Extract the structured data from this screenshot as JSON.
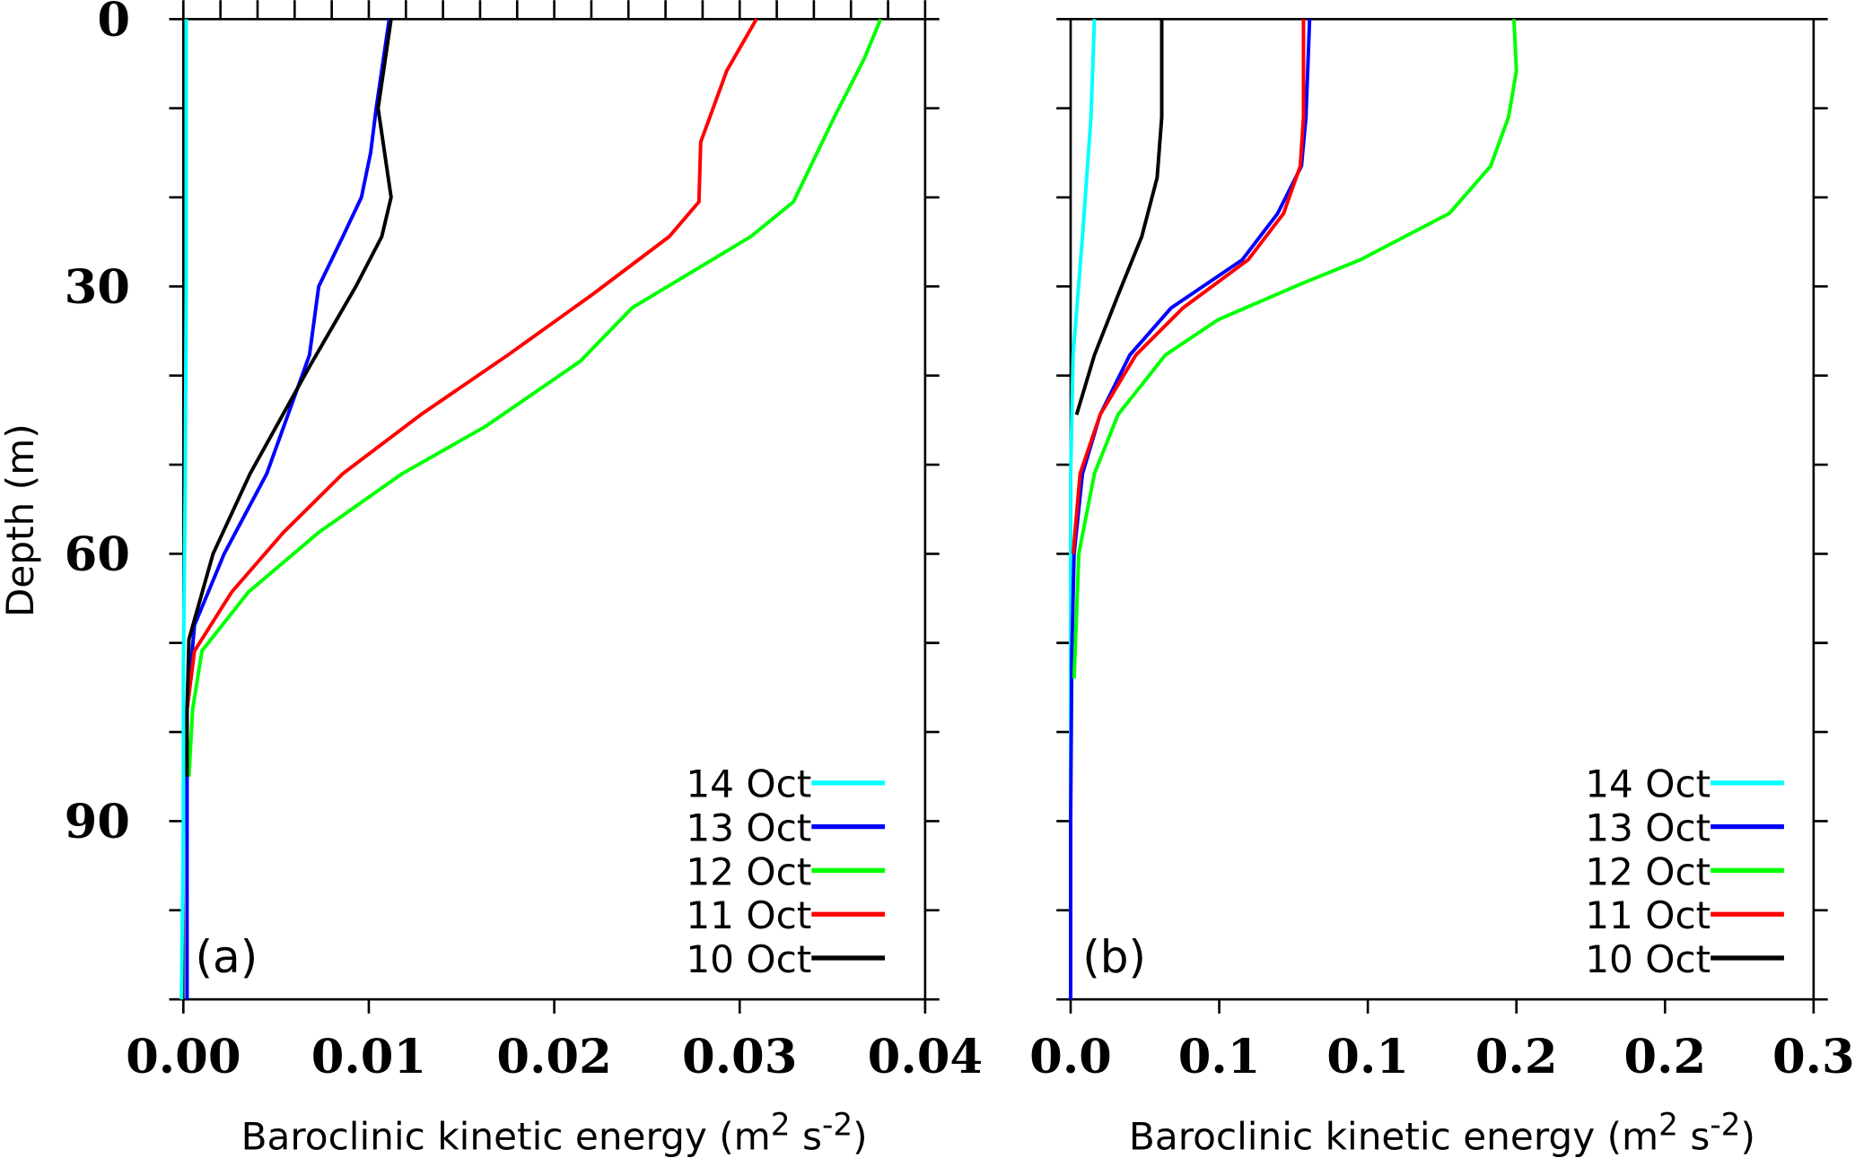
{
  "chart_data": [
    {
      "type": "line",
      "panel_label": "(a)",
      "xlabel": "Baroclinic kinetic energy (m",
      "xlabel_sup1": "2",
      "xlabel_mid": " s",
      "xlabel_sup2": "-2",
      "xlabel_end": ")",
      "ylabel": "Depth (m)",
      "xlim": [
        0,
        0.04
      ],
      "ylim": [
        0,
        110
      ],
      "y_inverted": true,
      "xticks": [
        0,
        0.01,
        0.02,
        0.03,
        0.04
      ],
      "xtick_labels": [
        "0.00",
        "0.01",
        "0.02",
        "0.03",
        "0.04"
      ],
      "yticks": [
        0,
        30,
        60,
        90
      ],
      "ytick_labels": [
        "0",
        "30",
        "60",
        "90"
      ],
      "legend_position": "bottom-right",
      "series": [
        {
          "name": "14 Oct",
          "color": "#00ffff",
          "points": [
            [
              0.00015,
              0
            ],
            [
              0.00015,
              30
            ],
            [
              0.0001,
              52
            ],
            [
              0.0,
              73
            ],
            [
              0.0,
              90
            ],
            [
              -0.0001,
              110
            ]
          ]
        },
        {
          "name": "13 Oct",
          "color": "#0000ff",
          "points": [
            [
              0.0111,
              0
            ],
            [
              0.0104,
              10
            ],
            [
              0.0101,
              15
            ],
            [
              0.0096,
              20
            ],
            [
              0.0086,
              24.4
            ],
            [
              0.0073,
              30
            ],
            [
              0.0068,
              37.7
            ],
            [
              0.0045,
              51
            ],
            [
              0.0022,
              60
            ],
            [
              0.0006,
              68
            ],
            [
              0.0002,
              77.5
            ],
            [
              0.0002,
              95
            ],
            [
              0.0002,
              110
            ]
          ]
        },
        {
          "name": "12 Oct",
          "color": "#00ff00",
          "points": [
            [
              0.0376,
              0
            ],
            [
              0.0367,
              4.5
            ],
            [
              0.0351,
              11
            ],
            [
              0.0329,
              20.5
            ],
            [
              0.0306,
              24.4
            ],
            [
              0.0242,
              32.4
            ],
            [
              0.0214,
              38.4
            ],
            [
              0.0163,
              45.7
            ],
            [
              0.0118,
              51
            ],
            [
              0.0073,
              57.6
            ],
            [
              0.0035,
              64.3
            ],
            [
              0.001,
              70.9
            ],
            [
              0.0005,
              77.5
            ],
            [
              0.0003,
              85
            ]
          ]
        },
        {
          "name": "11 Oct",
          "color": "#ff0000",
          "points": [
            [
              0.0309,
              0
            ],
            [
              0.0293,
              5.8
            ],
            [
              0.0279,
              13.8
            ],
            [
              0.0278,
              20.5
            ],
            [
              0.0262,
              24.4
            ],
            [
              0.022,
              31
            ],
            [
              0.0175,
              37.7
            ],
            [
              0.0128,
              44.4
            ],
            [
              0.0086,
              51
            ],
            [
              0.0054,
              57.6
            ],
            [
              0.0026,
              64.3
            ],
            [
              0.0006,
              70.9
            ],
            [
              0.0002,
              77.5
            ]
          ]
        },
        {
          "name": "10 Oct",
          "color": "#000000",
          "points": [
            [
              0.0112,
              0
            ],
            [
              0.0105,
              10
            ],
            [
              0.0112,
              20
            ],
            [
              0.0107,
              24.4
            ],
            [
              0.0093,
              30
            ],
            [
              0.0068,
              39
            ],
            [
              0.0036,
              51
            ],
            [
              0.0016,
              60
            ],
            [
              0.0003,
              69.6
            ],
            [
              0.0002,
              77.5
            ],
            [
              0.0002,
              85
            ]
          ]
        }
      ]
    },
    {
      "type": "line",
      "panel_label": "(b)",
      "xlabel": "Baroclinic kinetic energy (m",
      "xlabel_sup1": "2",
      "xlabel_mid": " s",
      "xlabel_sup2": "-2",
      "xlabel_end": ")",
      "xlim": [
        0,
        0.3
      ],
      "ylim": [
        0,
        110
      ],
      "y_inverted": true,
      "xticks": [
        0,
        0.06,
        0.12,
        0.18,
        0.24,
        0.3
      ],
      "xtick_labels": [
        "0.0",
        "0.1",
        "0.1",
        "0.2",
        "0.2",
        "0.3"
      ],
      "legend_position": "bottom-right",
      "series": [
        {
          "name": "14 Oct",
          "color": "#00ffff",
          "points": [
            [
              0.0096,
              0
            ],
            [
              0.0082,
              11
            ],
            [
              0.0048,
              24.4
            ],
            [
              0.001,
              37.7
            ],
            [
              0.0,
              51
            ],
            [
              0.0,
              80
            ],
            [
              0.0,
              110
            ]
          ]
        },
        {
          "name": "13 Oct",
          "color": "#0000ff",
          "points": [
            [
              0.0965,
              0
            ],
            [
              0.095,
              11
            ],
            [
              0.0932,
              16.5
            ],
            [
              0.0836,
              21.8
            ],
            [
              0.0693,
              27
            ],
            [
              0.0406,
              32.4
            ],
            [
              0.0239,
              37.7
            ],
            [
              0.0119,
              44.4
            ],
            [
              0.0048,
              51
            ],
            [
              0.0014,
              60
            ],
            [
              0.0005,
              71
            ],
            [
              0.0,
              90
            ],
            [
              0.0,
              110
            ]
          ]
        },
        {
          "name": "12 Oct",
          "color": "#00ff00",
          "points": [
            [
              0.179,
              0
            ],
            [
              0.18,
              5.8
            ],
            [
              0.1768,
              11
            ],
            [
              0.1696,
              16.5
            ],
            [
              0.1529,
              21.8
            ],
            [
              0.117,
              27
            ],
            [
              0.0932,
              29.7
            ],
            [
              0.0597,
              33.7
            ],
            [
              0.0382,
              37.7
            ],
            [
              0.0191,
              44.4
            ],
            [
              0.0096,
              51
            ],
            [
              0.0033,
              60
            ],
            [
              0.0014,
              74
            ]
          ]
        },
        {
          "name": "11 Oct",
          "color": "#ff0000",
          "points": [
            [
              0.094,
              0
            ],
            [
              0.094,
              11
            ],
            [
              0.0927,
              16.5
            ],
            [
              0.086,
              21.8
            ],
            [
              0.0717,
              27
            ],
            [
              0.0454,
              32.4
            ],
            [
              0.0263,
              37.7
            ],
            [
              0.0119,
              44.4
            ],
            [
              0.0038,
              51
            ],
            [
              0.001,
              60
            ]
          ]
        },
        {
          "name": "10 Oct",
          "color": "#000000",
          "points": [
            [
              0.0368,
              0
            ],
            [
              0.0368,
              11
            ],
            [
              0.0349,
              17.8
            ],
            [
              0.0287,
              24.4
            ],
            [
              0.0191,
              31
            ],
            [
              0.0096,
              37.7
            ],
            [
              0.0024,
              44.4
            ]
          ]
        }
      ]
    }
  ]
}
